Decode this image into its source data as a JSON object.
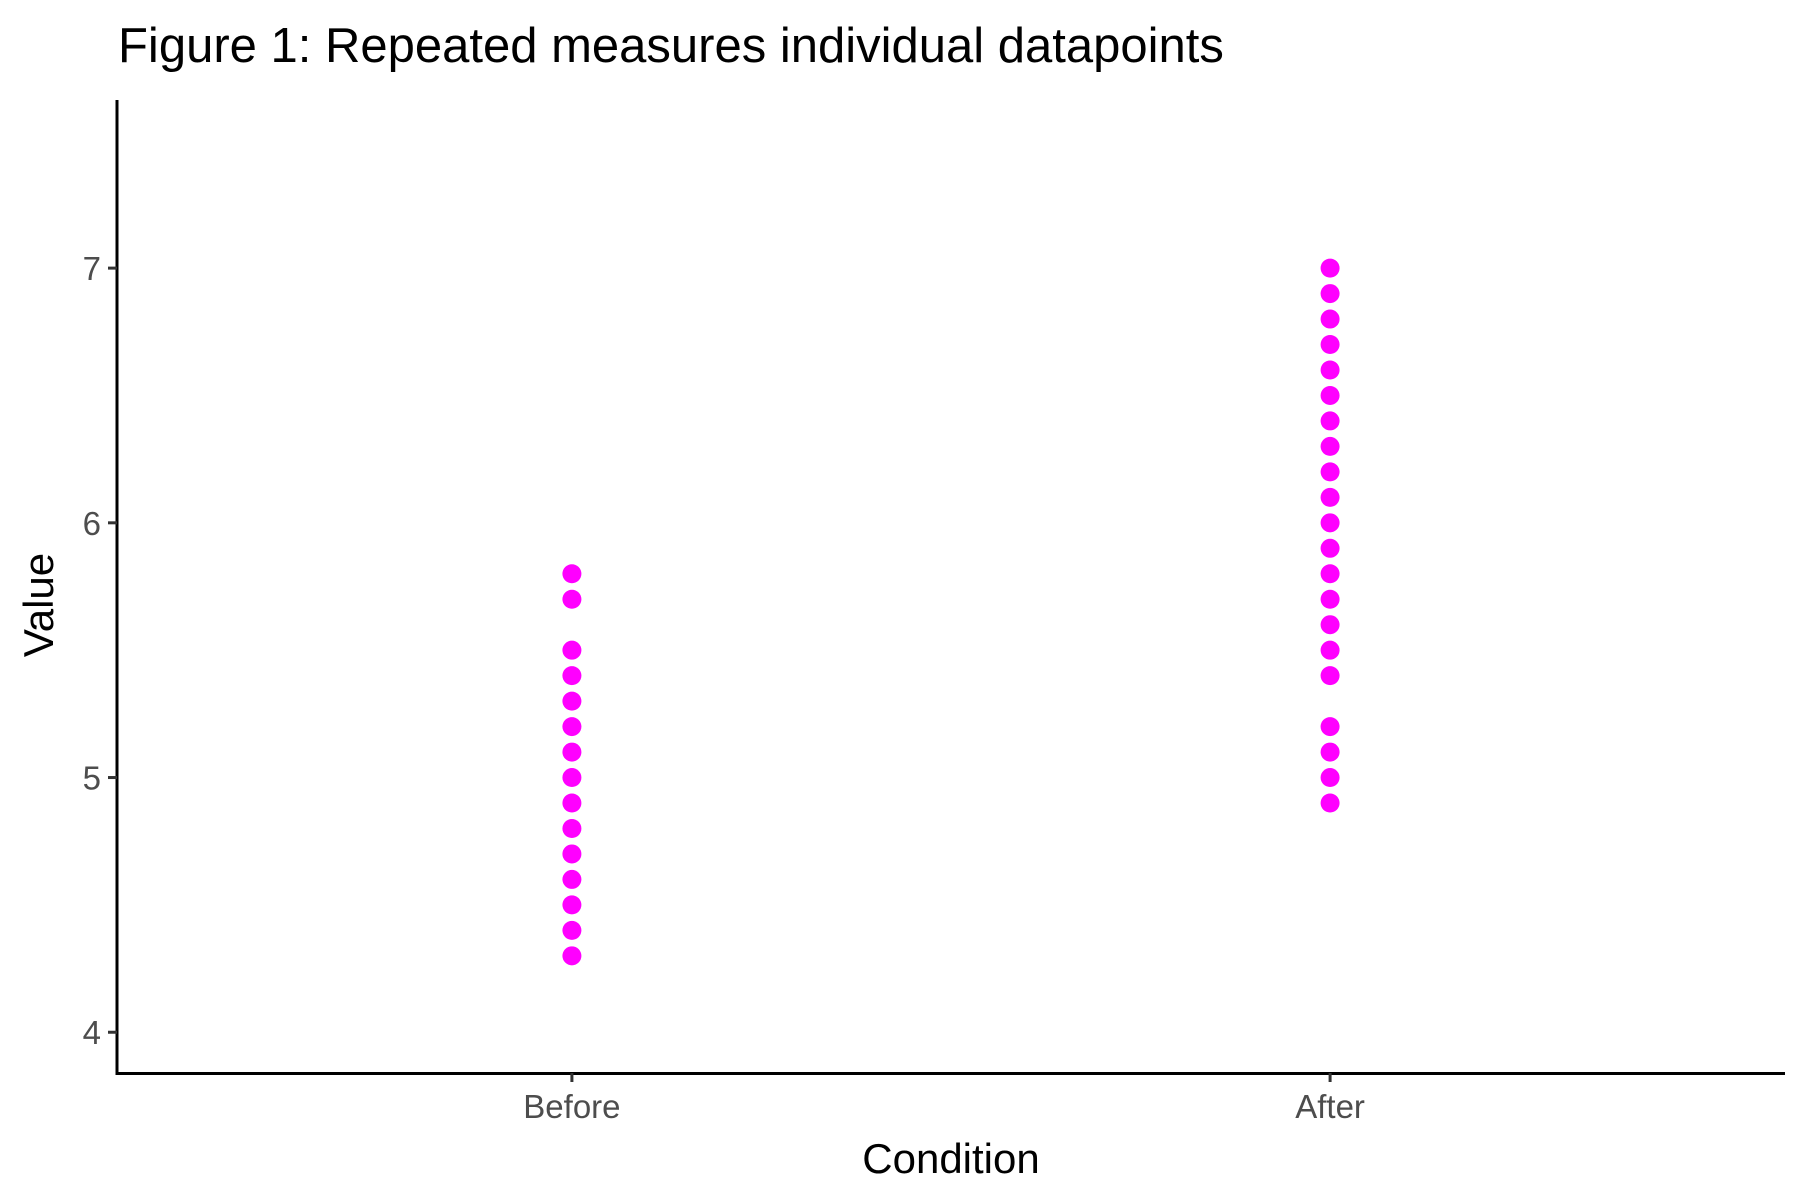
{
  "chart_data": {
    "type": "scatter",
    "title": "Figure 1: Repeated measures individual datapoints",
    "xlabel": "Condition",
    "ylabel": "Value",
    "categories": [
      "Before",
      "After"
    ],
    "y_ticks": [
      "4",
      "5",
      "6",
      "7"
    ],
    "ylim": [
      3.84,
      7.66
    ],
    "grid": false,
    "legend": "none",
    "point_color": "#FF00FF",
    "series": [
      {
        "category": "Before",
        "values": [
          5.8,
          5.7,
          5.5,
          5.4,
          5.3,
          5.2,
          5.1,
          5.0,
          4.9,
          4.8,
          4.7,
          4.6,
          4.5,
          4.4,
          4.3
        ]
      },
      {
        "category": "After",
        "values": [
          7.0,
          6.9,
          6.8,
          6.7,
          6.6,
          6.5,
          6.4,
          6.3,
          6.2,
          6.1,
          6.0,
          5.9,
          5.8,
          5.7,
          5.6,
          5.5,
          5.4,
          5.2,
          5.1,
          5.0,
          4.9
        ]
      }
    ]
  }
}
